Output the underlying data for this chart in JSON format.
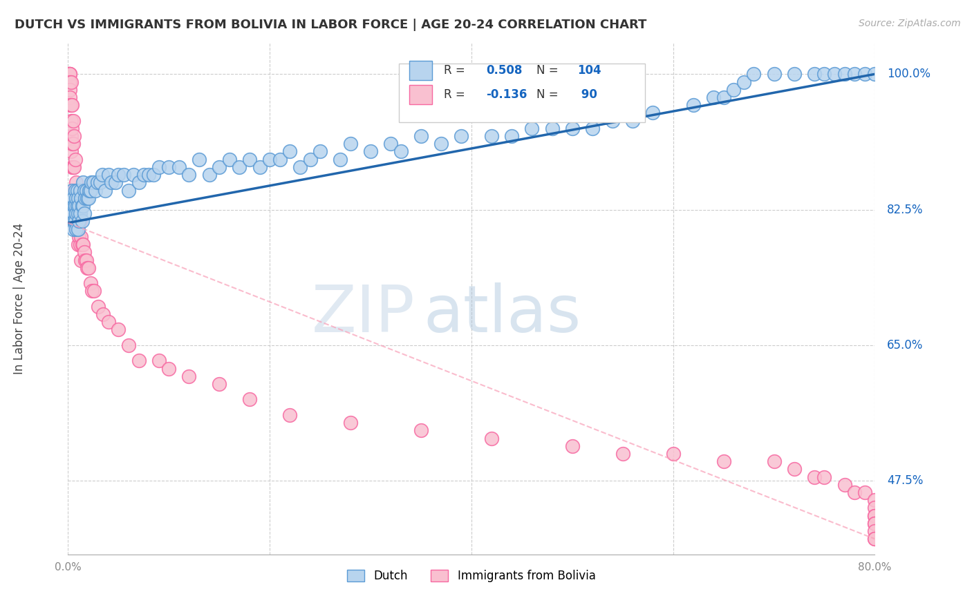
{
  "title": "DUTCH VS IMMIGRANTS FROM BOLIVIA IN LABOR FORCE | AGE 20-24 CORRELATION CHART",
  "source": "Source: ZipAtlas.com",
  "ylabel": "In Labor Force | Age 20-24",
  "ytick_labels": [
    "100.0%",
    "82.5%",
    "65.0%",
    "47.5%"
  ],
  "ytick_values": [
    1.0,
    0.825,
    0.65,
    0.475
  ],
  "watermark_zip": "ZIP",
  "watermark_atlas": "atlas",
  "dutch_color": "#b8d4ee",
  "dutch_edge_color": "#5b9bd5",
  "bolivia_color": "#f9c0d0",
  "bolivia_edge_color": "#f768a1",
  "trend_dutch_color": "#2166ac",
  "trend_bolivia_color": "#f9a0b8",
  "text_blue": "#1565C0",
  "xmin": 0.0,
  "xmax": 0.8,
  "ymin": 0.38,
  "ymax": 1.04,
  "dutch_trend_x0": 0.0,
  "dutch_trend_y0": 0.808,
  "dutch_trend_x1": 0.8,
  "dutch_trend_y1": 1.0,
  "bolivia_trend_x0": 0.0,
  "bolivia_trend_y0": 0.808,
  "bolivia_trend_x1": 0.8,
  "bolivia_trend_y1": 0.4,
  "dutch_x": [
    0.003,
    0.003,
    0.004,
    0.004,
    0.005,
    0.005,
    0.005,
    0.006,
    0.006,
    0.007,
    0.007,
    0.007,
    0.008,
    0.008,
    0.008,
    0.009,
    0.009,
    0.01,
    0.01,
    0.01,
    0.011,
    0.011,
    0.012,
    0.012,
    0.013,
    0.014,
    0.014,
    0.015,
    0.015,
    0.016,
    0.016,
    0.017,
    0.018,
    0.019,
    0.02,
    0.021,
    0.022,
    0.023,
    0.025,
    0.027,
    0.029,
    0.032,
    0.034,
    0.037,
    0.04,
    0.043,
    0.047,
    0.05,
    0.055,
    0.06,
    0.065,
    0.07,
    0.075,
    0.08,
    0.085,
    0.09,
    0.1,
    0.11,
    0.12,
    0.13,
    0.14,
    0.15,
    0.16,
    0.17,
    0.18,
    0.19,
    0.2,
    0.21,
    0.22,
    0.23,
    0.24,
    0.25,
    0.27,
    0.28,
    0.3,
    0.32,
    0.33,
    0.35,
    0.37,
    0.39,
    0.42,
    0.44,
    0.46,
    0.48,
    0.5,
    0.52,
    0.54,
    0.56,
    0.58,
    0.62,
    0.64,
    0.65,
    0.66,
    0.67,
    0.68,
    0.7,
    0.72,
    0.74,
    0.75,
    0.76,
    0.77,
    0.78,
    0.79,
    0.8
  ],
  "dutch_y": [
    0.84,
    0.82,
    0.85,
    0.81,
    0.84,
    0.82,
    0.8,
    0.83,
    0.81,
    0.85,
    0.83,
    0.81,
    0.84,
    0.82,
    0.8,
    0.85,
    0.83,
    0.84,
    0.82,
    0.8,
    0.83,
    0.81,
    0.85,
    0.82,
    0.84,
    0.83,
    0.81,
    0.86,
    0.83,
    0.85,
    0.82,
    0.84,
    0.85,
    0.84,
    0.84,
    0.85,
    0.85,
    0.86,
    0.86,
    0.85,
    0.86,
    0.86,
    0.87,
    0.85,
    0.87,
    0.86,
    0.86,
    0.87,
    0.87,
    0.85,
    0.87,
    0.86,
    0.87,
    0.87,
    0.87,
    0.88,
    0.88,
    0.88,
    0.87,
    0.89,
    0.87,
    0.88,
    0.89,
    0.88,
    0.89,
    0.88,
    0.89,
    0.89,
    0.9,
    0.88,
    0.89,
    0.9,
    0.89,
    0.91,
    0.9,
    0.91,
    0.9,
    0.92,
    0.91,
    0.92,
    0.92,
    0.92,
    0.93,
    0.93,
    0.93,
    0.93,
    0.94,
    0.94,
    0.95,
    0.96,
    0.97,
    0.97,
    0.98,
    0.99,
    1.0,
    1.0,
    1.0,
    1.0,
    1.0,
    1.0,
    1.0,
    1.0,
    1.0,
    1.0
  ],
  "bolivia_x": [
    0.001,
    0.001,
    0.001,
    0.001,
    0.001,
    0.002,
    0.002,
    0.002,
    0.002,
    0.002,
    0.002,
    0.003,
    0.003,
    0.003,
    0.003,
    0.003,
    0.004,
    0.004,
    0.004,
    0.004,
    0.005,
    0.005,
    0.005,
    0.005,
    0.006,
    0.006,
    0.006,
    0.006,
    0.007,
    0.007,
    0.007,
    0.008,
    0.008,
    0.008,
    0.009,
    0.009,
    0.01,
    0.01,
    0.01,
    0.011,
    0.011,
    0.012,
    0.012,
    0.013,
    0.013,
    0.014,
    0.015,
    0.016,
    0.017,
    0.018,
    0.019,
    0.02,
    0.022,
    0.024,
    0.026,
    0.03,
    0.035,
    0.04,
    0.05,
    0.06,
    0.07,
    0.09,
    0.1,
    0.12,
    0.15,
    0.18,
    0.22,
    0.28,
    0.35,
    0.42,
    0.5,
    0.55,
    0.6,
    0.65,
    0.7,
    0.72,
    0.74,
    0.75,
    0.77,
    0.78,
    0.79,
    0.8,
    0.8,
    0.8,
    0.8,
    0.8,
    0.8,
    0.8,
    0.8,
    0.8
  ],
  "bolivia_y": [
    1.0,
    1.0,
    1.0,
    0.99,
    0.99,
    1.0,
    1.0,
    0.99,
    0.98,
    0.97,
    0.96,
    0.99,
    0.96,
    0.94,
    0.92,
    0.9,
    0.96,
    0.93,
    0.91,
    0.88,
    0.94,
    0.91,
    0.88,
    0.85,
    0.92,
    0.88,
    0.85,
    0.82,
    0.89,
    0.85,
    0.82,
    0.86,
    0.83,
    0.8,
    0.83,
    0.8,
    0.84,
    0.81,
    0.78,
    0.82,
    0.79,
    0.81,
    0.78,
    0.79,
    0.76,
    0.78,
    0.78,
    0.77,
    0.76,
    0.76,
    0.75,
    0.75,
    0.73,
    0.72,
    0.72,
    0.7,
    0.69,
    0.68,
    0.67,
    0.65,
    0.63,
    0.63,
    0.62,
    0.61,
    0.6,
    0.58,
    0.56,
    0.55,
    0.54,
    0.53,
    0.52,
    0.51,
    0.51,
    0.5,
    0.5,
    0.49,
    0.48,
    0.48,
    0.47,
    0.46,
    0.46,
    0.45,
    0.44,
    0.43,
    0.43,
    0.42,
    0.42,
    0.41,
    0.4,
    0.4
  ]
}
